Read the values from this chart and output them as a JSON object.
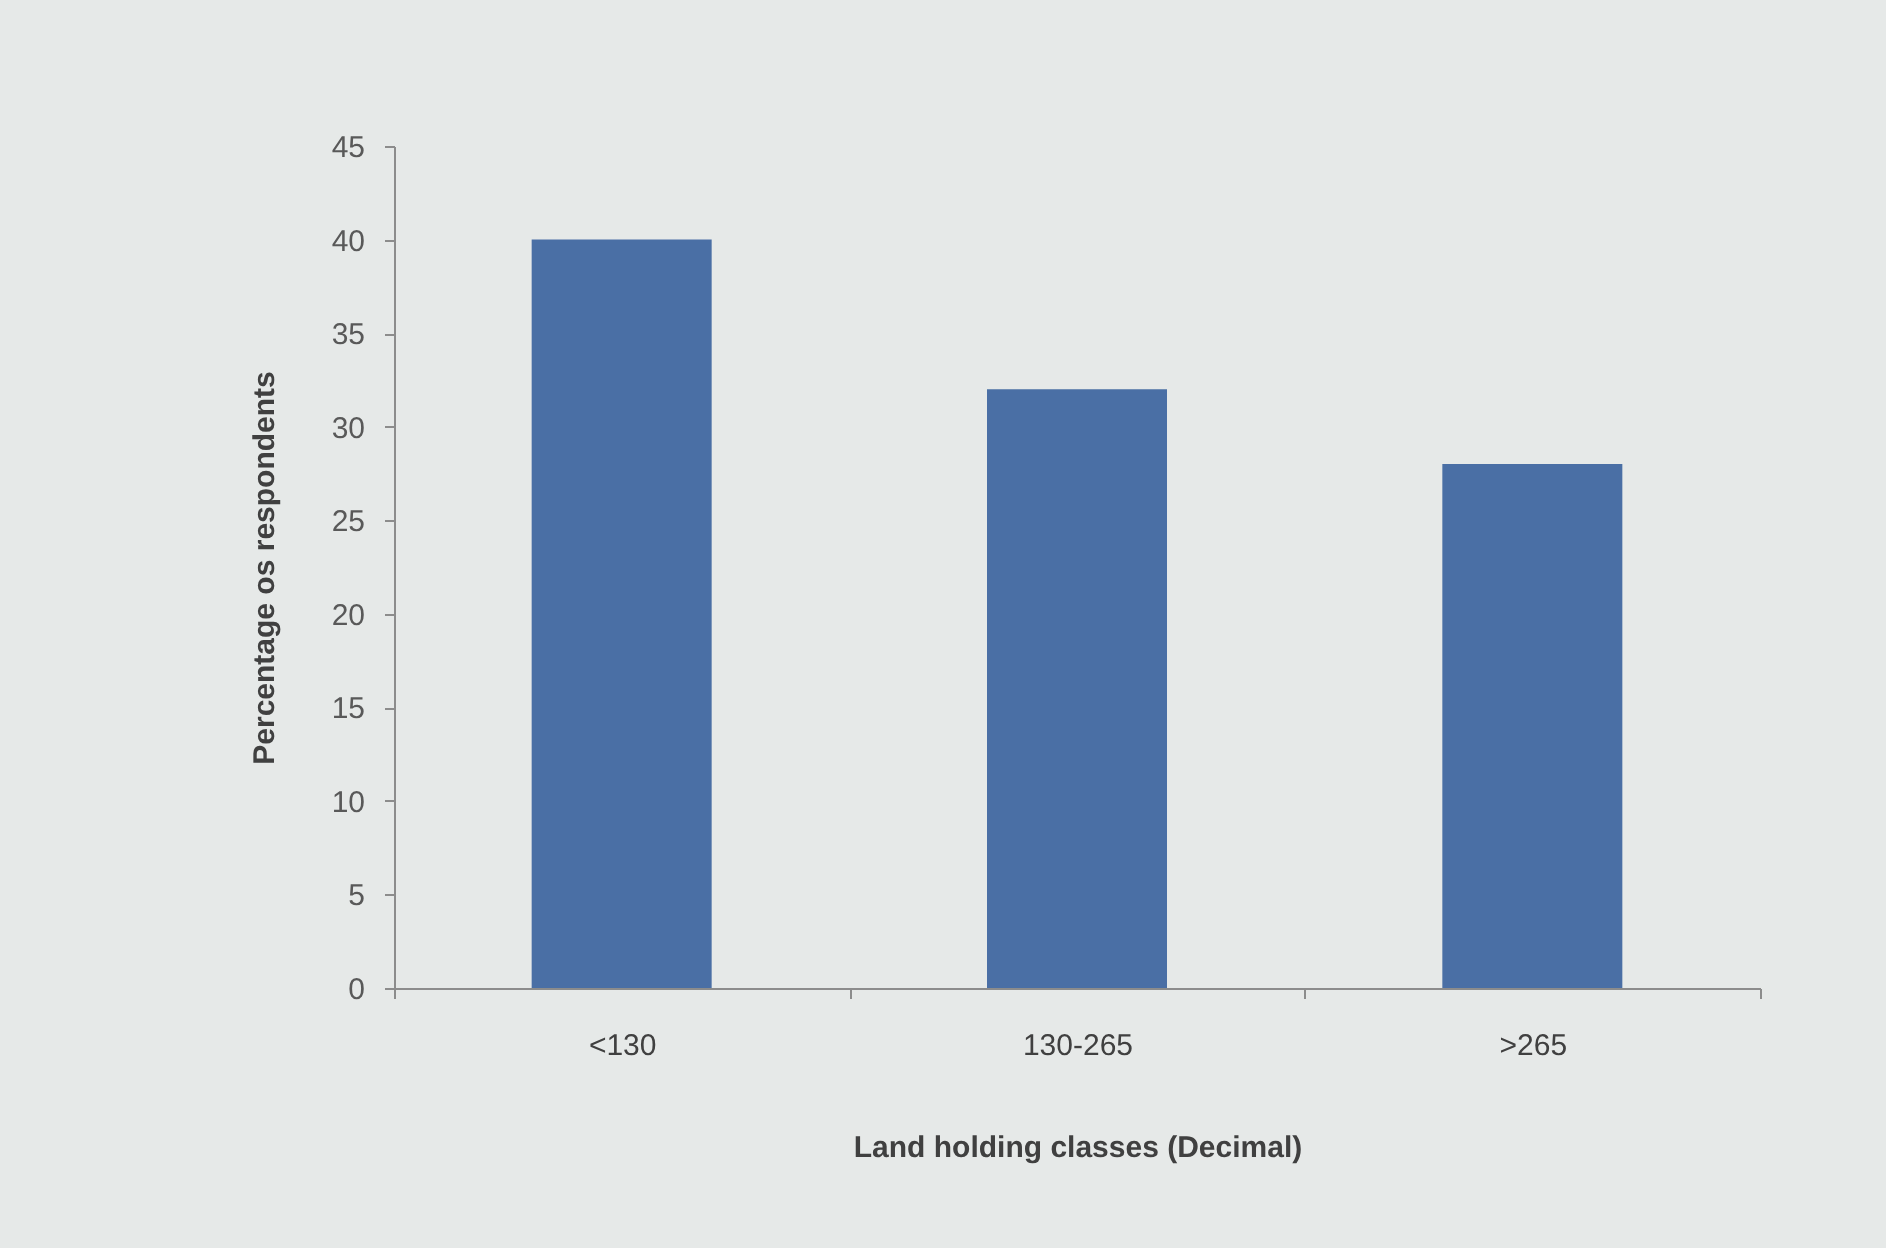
{
  "chart_data": {
    "type": "bar",
    "xlabel": "Land holding classes (Decimal)",
    "ylabel": "Percentage os respondents",
    "categories": [
      "<130",
      "130-265",
      ">265"
    ],
    "values": [
      40,
      32,
      28
    ],
    "color": "#4a6fa5",
    "ylim": [
      0,
      45
    ],
    "yticks": [
      0,
      5,
      10,
      15,
      20,
      25,
      30,
      35,
      40,
      45
    ],
    "grid": false
  }
}
